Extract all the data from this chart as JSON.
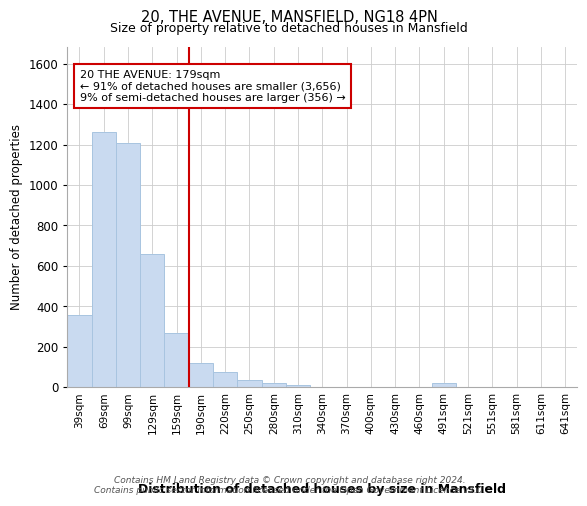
{
  "title1": "20, THE AVENUE, MANSFIELD, NG18 4PN",
  "title2": "Size of property relative to detached houses in Mansfield",
  "xlabel": "Distribution of detached houses by size in Mansfield",
  "ylabel": "Number of detached properties",
  "categories": [
    "39sqm",
    "69sqm",
    "99sqm",
    "129sqm",
    "159sqm",
    "190sqm",
    "220sqm",
    "250sqm",
    "280sqm",
    "310sqm",
    "340sqm",
    "370sqm",
    "400sqm",
    "430sqm",
    "460sqm",
    "491sqm",
    "521sqm",
    "551sqm",
    "581sqm",
    "611sqm",
    "641sqm"
  ],
  "values": [
    360,
    1260,
    1210,
    660,
    270,
    120,
    75,
    38,
    20,
    12,
    0,
    0,
    0,
    0,
    0,
    20,
    0,
    0,
    0,
    0,
    0
  ],
  "bar_color": "#c9daf0",
  "bar_edge_color": "#a8c4e0",
  "vline_x_index": 5,
  "vline_color": "#cc0000",
  "annotation_text": "20 THE AVENUE: 179sqm\n← 91% of detached houses are smaller (3,656)\n9% of semi-detached houses are larger (356) →",
  "ylim": [
    0,
    1680
  ],
  "yticks": [
    0,
    200,
    400,
    600,
    800,
    1000,
    1200,
    1400,
    1600
  ],
  "fig_bg_color": "#ffffff",
  "plot_bg_color": "#ffffff",
  "grid_color": "#cccccc",
  "footer": "Contains HM Land Registry data © Crown copyright and database right 2024.\nContains public sector information licensed under the Open Government Licence v3.0."
}
